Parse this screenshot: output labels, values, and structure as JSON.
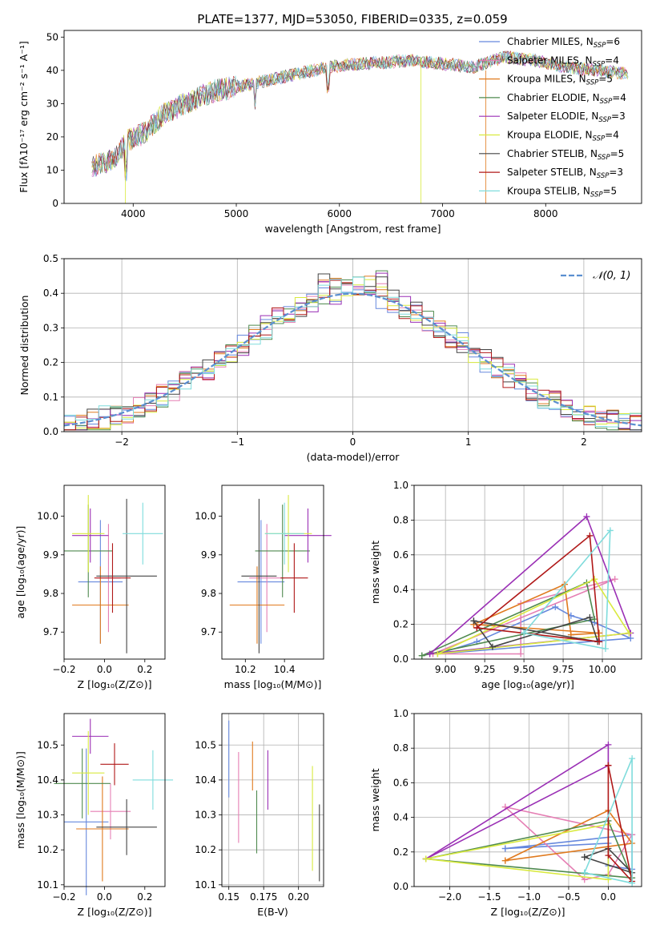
{
  "chart_data": [
    {
      "id": "spectrum",
      "type": "line",
      "title": "PLATE=1377, MJD=53050, FIBERID=0335, z=0.059",
      "xlabel": "wavelength [Angstrom, rest frame]",
      "ylabel": "Flux [fλ10⁻¹⁷ erg cm⁻² s⁻¹ A⁻¹]",
      "xlim": [
        3330,
        8930
      ],
      "ylim": [
        0,
        52
      ],
      "xticks": [
        4000,
        5000,
        6000,
        7000,
        8000
      ],
      "yticks": [
        0,
        10,
        20,
        30,
        40,
        50
      ],
      "legend_position": "right",
      "series": [
        {
          "name": "Chabrier MILES, N",
          "sub": "SSP",
          "suffix": "=6",
          "color": "#6688dd"
        },
        {
          "name": "Salpeter MILES, N",
          "sub": "SSP",
          "suffix": "=4",
          "color": "#e57fb4"
        },
        {
          "name": "Kroupa MILES, N",
          "sub": "SSP",
          "suffix": "=5",
          "color": "#e07a1e"
        },
        {
          "name": "Chabrier ELODIE, N",
          "sub": "SSP",
          "suffix": "=4",
          "color": "#4f8a4f"
        },
        {
          "name": "Salpeter ELODIE, N",
          "sub": "SSP",
          "suffix": "=3",
          "color": "#9a2fb5"
        },
        {
          "name": "Kroupa ELODIE, N",
          "sub": "SSP",
          "suffix": "=4",
          "color": "#d9ea3f"
        },
        {
          "name": "Chabrier STELIB, N",
          "sub": "SSP",
          "suffix": "=5",
          "color": "#444444"
        },
        {
          "name": "Salpeter STELIB, N",
          "sub": "SSP",
          "suffix": "=3",
          "color": "#b01818"
        },
        {
          "name": "Kroupa STELIB, N",
          "sub": "SSP",
          "suffix": "=5",
          "color": "#7fdcdc"
        }
      ],
      "continuum": {
        "x": [
          3600,
          3800,
          3950,
          4100,
          4300,
          4500,
          4800,
          5000,
          5300,
          5600,
          5900,
          6200,
          6500,
          6700,
          7000,
          7300,
          7600,
          7900,
          8200,
          8500,
          8800
        ],
        "y": [
          11,
          13,
          19,
          21,
          27,
          30,
          34,
          35,
          37,
          39,
          41,
          42,
          42.5,
          43,
          42,
          41,
          44,
          43,
          41,
          40,
          39
        ]
      }
    },
    {
      "id": "residuals",
      "type": "line",
      "xlabel": "(data-model)/error",
      "ylabel": "Normed distribution",
      "xlim": [
        -2.5,
        2.5
      ],
      "ylim": [
        0,
        0.5
      ],
      "xticks": [
        -2,
        -1,
        0,
        1,
        2
      ],
      "yticks": [
        0.0,
        0.1,
        0.2,
        0.3,
        0.4,
        0.5
      ],
      "legend": "𝒩(0, 1)",
      "legend_position": "top-right",
      "grid": true
    },
    {
      "id": "age_vs_Z",
      "type": "scatter",
      "xlabel": "Z [log₁₀(Z/Z⊙)]",
      "ylabel": "age  [log₁₀(age/yr)]",
      "xlim": [
        -0.2,
        0.3
      ],
      "ylim": [
        9.63,
        10.08
      ],
      "xticks": [
        -0.2,
        0.0,
        0.2
      ],
      "yticks": [
        9.7,
        9.8,
        9.9,
        10.0
      ],
      "points": [
        {
          "x": -0.02,
          "y": 9.83,
          "xerr": 0.11,
          "yerr": 0.16
        },
        {
          "x": 0.02,
          "y": 9.84,
          "xerr": 0.06,
          "yerr": 0.14
        },
        {
          "x": -0.02,
          "y": 9.77,
          "xerr": 0.14,
          "yerr": 0.1
        },
        {
          "x": -0.08,
          "y": 9.91,
          "xerr": 0.12,
          "yerr": 0.12
        },
        {
          "x": -0.07,
          "y": 9.95,
          "xerr": 0.09,
          "yerr": 0.07
        },
        {
          "x": -0.08,
          "y": 9.955,
          "xerr": 0.08,
          "yerr": 0.1
        },
        {
          "x": 0.11,
          "y": 9.845,
          "xerr": 0.15,
          "yerr": 0.2
        },
        {
          "x": 0.04,
          "y": 9.84,
          "xerr": 0.09,
          "yerr": 0.09
        },
        {
          "x": 0.19,
          "y": 9.955,
          "xerr": 0.1,
          "yerr": 0.08
        }
      ]
    },
    {
      "id": "age_vs_mass",
      "type": "scatter",
      "xlabel": "mass [log₁₀(M/M⊙)]",
      "xlim": [
        10.08,
        10.6
      ],
      "ylim": [
        9.63,
        10.08
      ],
      "xticks": [
        10.2,
        10.4
      ],
      "yticks": [
        9.7,
        9.8,
        9.9,
        10.0
      ],
      "points": [
        {
          "x": 10.28,
          "y": 9.83,
          "xerr": 0.12,
          "yerr": 0.16
        },
        {
          "x": 10.31,
          "y": 9.84,
          "xerr": 0.09,
          "yerr": 0.14
        },
        {
          "x": 10.26,
          "y": 9.77,
          "xerr": 0.14,
          "yerr": 0.1
        },
        {
          "x": 10.39,
          "y": 9.91,
          "xerr": 0.14,
          "yerr": 0.12
        },
        {
          "x": 10.52,
          "y": 9.95,
          "xerr": 0.12,
          "yerr": 0.07
        },
        {
          "x": 10.42,
          "y": 9.955,
          "xerr": 0.12,
          "yerr": 0.1
        },
        {
          "x": 10.27,
          "y": 9.845,
          "xerr": 0.09,
          "yerr": 0.2
        },
        {
          "x": 10.45,
          "y": 9.84,
          "xerr": 0.07,
          "yerr": 0.09
        },
        {
          "x": 10.4,
          "y": 9.955,
          "xerr": 0.1,
          "yerr": 0.08
        }
      ]
    },
    {
      "id": "weight_vs_age",
      "type": "line",
      "ylabel": "mass weight",
      "xlabel": "age  [log₁₀(age/yr)]",
      "xlim": [
        8.8,
        10.25
      ],
      "ylim": [
        0,
        1
      ],
      "xticks": [
        9.0,
        9.25,
        9.5,
        9.75,
        10.0
      ],
      "yticks": [
        0.0,
        0.2,
        0.4,
        0.6,
        0.8,
        1.0
      ],
      "grid": true,
      "series": [
        {
          "x": [
            8.95,
            9.2,
            9.7,
            9.8,
            9.95,
            10.18,
            8.95
          ],
          "y": [
            0.03,
            0.1,
            0.3,
            0.25,
            0.21,
            0.12,
            0.03
          ]
        },
        {
          "x": [
            8.92,
            9.48,
            9.48,
            10.08,
            8.92
          ],
          "y": [
            0.03,
            0.03,
            0.32,
            0.46,
            0.03
          ]
        },
        {
          "x": [
            9.18,
            9.76,
            9.8,
            9.98,
            9.18
          ],
          "y": [
            0.2,
            0.43,
            0.14,
            0.15,
            0.2
          ]
        },
        {
          "x": [
            8.85,
            9.9,
            9.95,
            8.85
          ],
          "y": [
            0.02,
            0.44,
            0.23,
            0.02
          ]
        },
        {
          "x": [
            8.9,
            9.9,
            10.18,
            8.9
          ],
          "y": [
            0.03,
            0.82,
            0.15,
            0.03
          ]
        },
        {
          "x": [
            8.95,
            9.95,
            10.17,
            8.95
          ],
          "y": [
            0.03,
            0.46,
            0.15,
            0.03
          ]
        },
        {
          "x": [
            9.18,
            9.3,
            9.92,
            9.97,
            9.18
          ],
          "y": [
            0.22,
            0.07,
            0.24,
            0.1,
            0.22
          ]
        },
        {
          "x": [
            9.2,
            9.92,
            9.98,
            9.2
          ],
          "y": [
            0.18,
            0.71,
            0.1,
            0.18
          ]
        },
        {
          "x": [
            9.5,
            10.02,
            10.05,
            9.5
          ],
          "y": [
            0.15,
            0.06,
            0.74,
            0.15
          ]
        }
      ]
    },
    {
      "id": "mass_vs_Z",
      "type": "scatter",
      "xlabel": "Z [log₁₀(Z/Z⊙)]",
      "ylabel": "mass [log₁₀(M/M⊙)]",
      "xlim": [
        -0.2,
        0.3
      ],
      "ylim": [
        10.095,
        10.59
      ],
      "xticks": [
        -0.2,
        0.0,
        0.2
      ],
      "yticks": [
        10.1,
        10.2,
        10.3,
        10.4,
        10.5
      ],
      "points": [
        {
          "x": -0.09,
          "y": 10.28,
          "xerr": 0.11,
          "yerr": 0.21
        },
        {
          "x": 0.03,
          "y": 10.31,
          "xerr": 0.1,
          "yerr": 0.08
        },
        {
          "x": -0.01,
          "y": 10.26,
          "xerr": 0.13,
          "yerr": 0.15
        },
        {
          "x": -0.11,
          "y": 10.39,
          "xerr": 0.14,
          "yerr": 0.1
        },
        {
          "x": -0.07,
          "y": 10.525,
          "xerr": 0.09,
          "yerr": 0.05
        },
        {
          "x": -0.08,
          "y": 10.42,
          "xerr": 0.08,
          "yerr": 0.12
        },
        {
          "x": 0.11,
          "y": 10.265,
          "xerr": 0.15,
          "yerr": 0.08
        },
        {
          "x": 0.05,
          "y": 10.445,
          "xerr": 0.07,
          "yerr": 0.06
        },
        {
          "x": 0.24,
          "y": 10.4,
          "xerr": 0.1,
          "yerr": 0.085
        }
      ]
    },
    {
      "id": "mass_vs_ebv",
      "type": "scatter",
      "xlabel": "E(B-V)",
      "xlim": [
        0.145,
        0.218
      ],
      "ylim": [
        10.095,
        10.59
      ],
      "xticks": [
        0.15,
        0.175,
        0.2
      ],
      "yticks": [
        10.1,
        10.2,
        10.3,
        10.4,
        10.5
      ],
      "grid": true,
      "points": [
        {
          "x": 0.15,
          "y": 10.46,
          "xerr": 0,
          "yerr": 0.11
        },
        {
          "x": 0.157,
          "y": 10.35,
          "xerr": 0,
          "yerr": 0.13
        },
        {
          "x": 0.167,
          "y": 10.44,
          "xerr": 0,
          "yerr": 0.07
        },
        {
          "x": 0.17,
          "y": 10.28,
          "xerr": 0,
          "yerr": 0.09
        },
        {
          "x": 0.178,
          "y": 10.4,
          "xerr": 0,
          "yerr": 0.085
        },
        {
          "x": 0.21,
          "y": 10.29,
          "xerr": 0,
          "yerr": 0.15
        },
        {
          "x": 0.215,
          "y": 10.22,
          "xerr": 0,
          "yerr": 0.11
        }
      ]
    },
    {
      "id": "weight_vs_Z",
      "type": "line",
      "ylabel": "mass weight",
      "xlabel": "Z [log₁₀(Z/Z⊙)]",
      "xlim": [
        -2.45,
        0.42
      ],
      "ylim": [
        0,
        1
      ],
      "xticks": [
        -2.0,
        -1.5,
        -1.0,
        -0.5,
        0.0
      ],
      "yticks": [
        0.0,
        0.2,
        0.4,
        0.6,
        0.8,
        1.0
      ],
      "grid": true,
      "series": [
        {
          "x": [
            -1.3,
            0.0,
            0.0,
            0.3,
            0.3,
            -1.3
          ],
          "y": [
            0.22,
            0.25,
            0.12,
            0.1,
            0.3,
            0.22
          ]
        },
        {
          "x": [
            -1.3,
            -0.3,
            0.0,
            0.3,
            -1.3
          ],
          "y": [
            0.46,
            0.04,
            0.07,
            0.3,
            0.46
          ]
        },
        {
          "x": [
            -1.3,
            0.0,
            0.3,
            -1.3
          ],
          "y": [
            0.15,
            0.44,
            0.25,
            0.15
          ]
        },
        {
          "x": [
            -2.3,
            0.0,
            0.3,
            -2.3
          ],
          "y": [
            0.16,
            0.38,
            0.05,
            0.16
          ]
        },
        {
          "x": [
            -2.3,
            0.0,
            0.0,
            -2.3
          ],
          "y": [
            0.16,
            0.82,
            0.7,
            0.16
          ]
        },
        {
          "x": [
            -2.3,
            0.0,
            0.0,
            -2.3
          ],
          "y": [
            0.16,
            0.36,
            0.04,
            0.16
          ]
        },
        {
          "x": [
            -0.3,
            0.0,
            0.3,
            -0.3
          ],
          "y": [
            0.17,
            0.22,
            0.08,
            0.17
          ]
        },
        {
          "x": [
            0.0,
            0.0,
            0.3,
            0.0
          ],
          "y": [
            0.7,
            0.18,
            0.03,
            0.7
          ]
        },
        {
          "x": [
            -0.3,
            0.3,
            0.3,
            -0.3
          ],
          "y": [
            0.08,
            0.74,
            0.02,
            0.08
          ]
        }
      ]
    }
  ]
}
